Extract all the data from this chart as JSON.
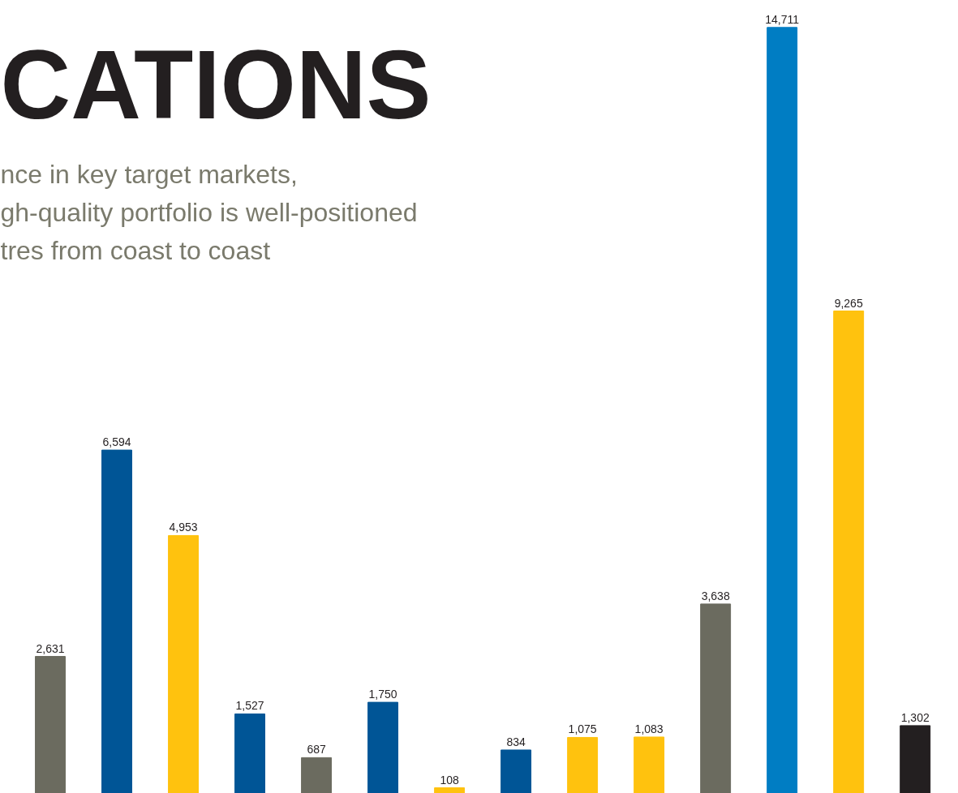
{
  "chart_data": {
    "type": "bar",
    "title": "CATIONS",
    "subtitle": "nce in key target markets,\ngh-quality portfolio is well-positioned\ntres from coast to coast",
    "categories": [
      null,
      null,
      null,
      null,
      null,
      null,
      null,
      null,
      null,
      null,
      null,
      null,
      null,
      null
    ],
    "values": [
      2631,
      6594,
      4953,
      1527,
      687,
      1750,
      108,
      834,
      1075,
      1083,
      3638,
      14711,
      9265,
      1302
    ],
    "colors": [
      "#6b6b5f",
      "#005596",
      "#ffc20e",
      "#005596",
      "#6b6b5f",
      "#005596",
      "#ffc20e",
      "#005596",
      "#ffc20e",
      "#ffc20e",
      "#6b6b5f",
      "#007dc3",
      "#ffc20e",
      "#231f20"
    ],
    "value_labels": [
      "2,631",
      "6,594",
      "4,953",
      "1,527",
      "687",
      "1,750",
      "108",
      "834",
      "1,075",
      "1,083",
      "3,638",
      "14,711",
      "9,265",
      "1,302"
    ],
    "ylim": [
      0,
      15230
    ]
  }
}
